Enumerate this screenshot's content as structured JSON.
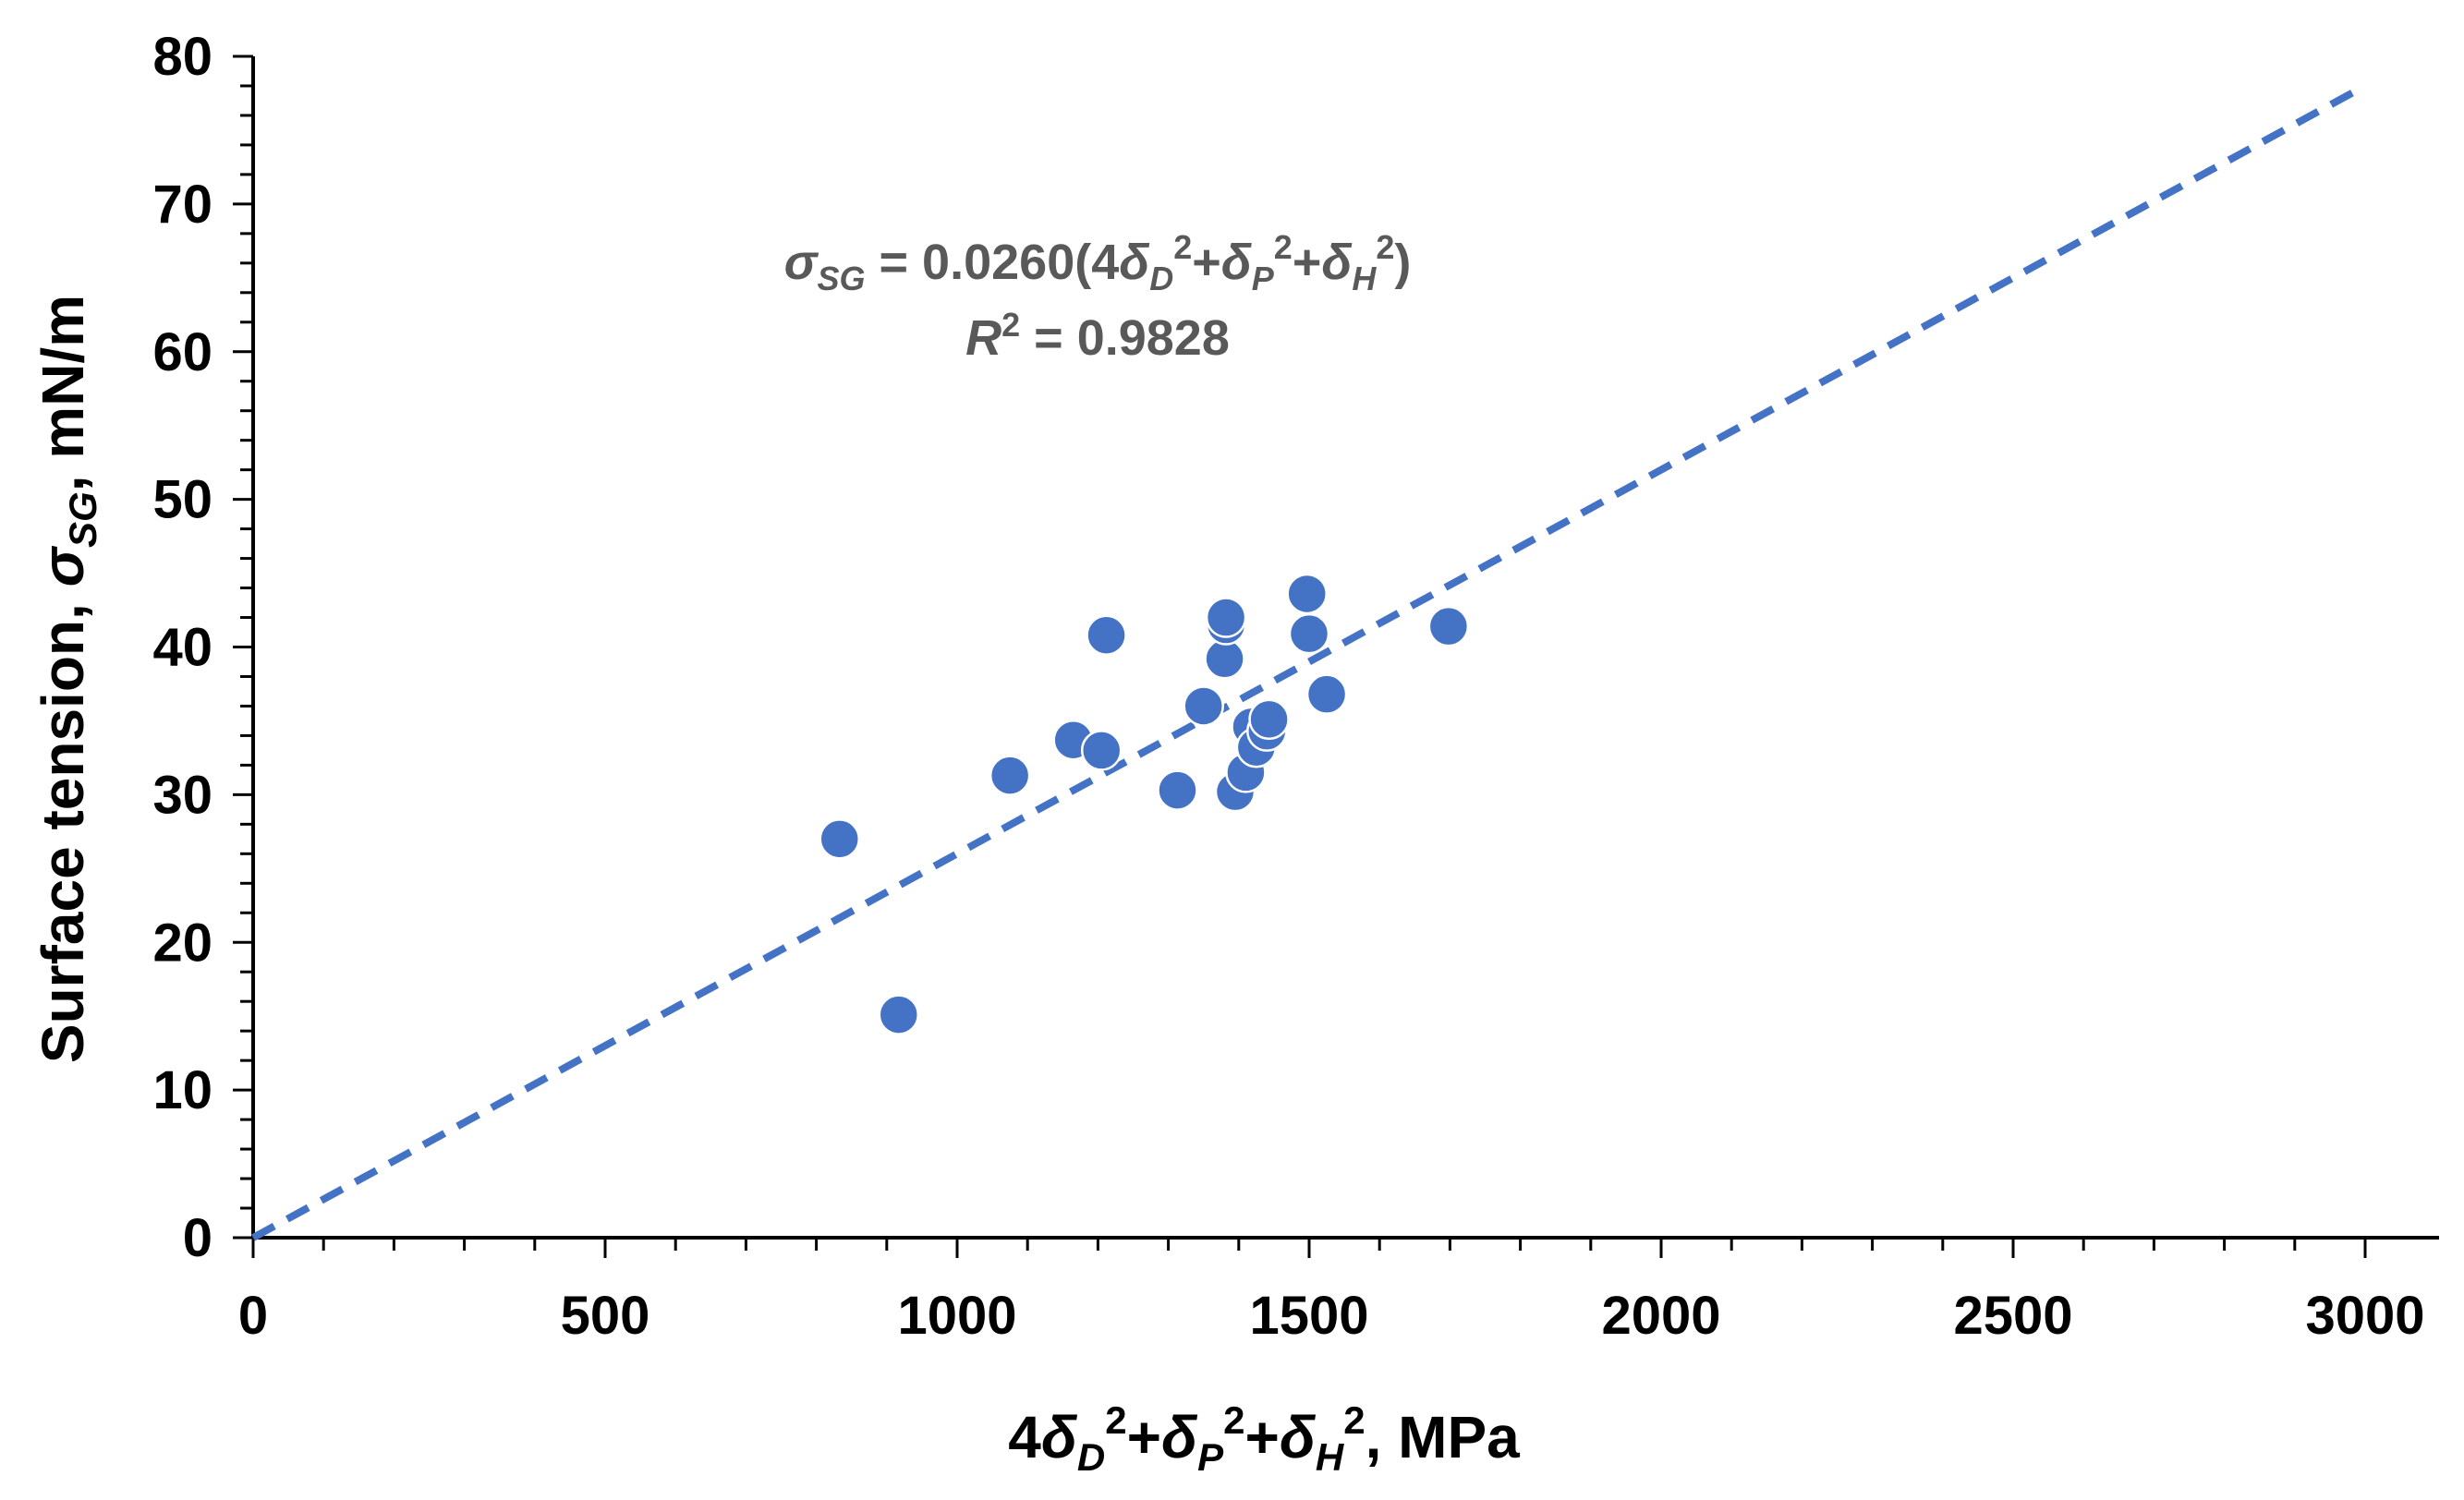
{
  "chart_data": {
    "type": "scatter",
    "xlabel": {
      "prefix": "4",
      "d1": "δ",
      "s1": "D",
      "p1": "2",
      "plus1": "+",
      "d2": "δ",
      "s2": "P",
      "p2": "2",
      "plus2": "+",
      "d3": "δ",
      "s3": "H",
      "p3": "2",
      "suffix": ", MPa"
    },
    "ylabel": {
      "prefix": "Surface tension, ",
      "sym": "σ",
      "sub": "SG",
      "suffix": ", mN/m"
    },
    "xlim": [
      0,
      3000
    ],
    "ylim": [
      0,
      80
    ],
    "x_ticks": [
      0,
      500,
      1000,
      1500,
      2000,
      2500,
      3000
    ],
    "y_ticks": [
      0,
      10,
      20,
      30,
      40,
      50,
      60,
      70,
      80
    ],
    "grid": false,
    "series": [
      {
        "name": "data",
        "color": "#4472C4",
        "points": [
          {
            "x": 833,
            "y": 27.0
          },
          {
            "x": 917,
            "y": 15.1
          },
          {
            "x": 1075,
            "y": 31.3
          },
          {
            "x": 1165,
            "y": 33.7
          },
          {
            "x": 1205,
            "y": 33.0
          },
          {
            "x": 1212,
            "y": 40.8
          },
          {
            "x": 1313,
            "y": 30.3
          },
          {
            "x": 1350,
            "y": 36.0
          },
          {
            "x": 1380,
            "y": 39.2
          },
          {
            "x": 1382,
            "y": 41.5
          },
          {
            "x": 1382,
            "y": 42.0
          },
          {
            "x": 1395,
            "y": 30.2
          },
          {
            "x": 1410,
            "y": 31.5
          },
          {
            "x": 1418,
            "y": 34.6
          },
          {
            "x": 1425,
            "y": 33.2
          },
          {
            "x": 1440,
            "y": 34.3
          },
          {
            "x": 1443,
            "y": 35.1
          },
          {
            "x": 1497,
            "y": 43.6
          },
          {
            "x": 1500,
            "y": 40.9
          },
          {
            "x": 1525,
            "y": 36.8
          },
          {
            "x": 1698,
            "y": 41.4
          }
        ]
      }
    ],
    "fit_line": {
      "slope": 0.026,
      "x_start": 0,
      "x_end": 3000,
      "color": "#4472C4",
      "style": "dashed"
    },
    "annotation": {
      "eq": {
        "sym": "σ",
        "sub": "SG",
        "eqpart": " = 0.0260(4",
        "d1": "δ",
        "s1": "D",
        "p1": "2",
        "plus1": "+",
        "d2": "δ",
        "s2": "P",
        "p2": "2",
        "plus2": "+",
        "d3": "δ",
        "s3": "H",
        "p3": "2",
        "close": ")"
      },
      "r2": {
        "sym": "R",
        "sup": "2",
        "value": " = 0.9828"
      }
    }
  }
}
